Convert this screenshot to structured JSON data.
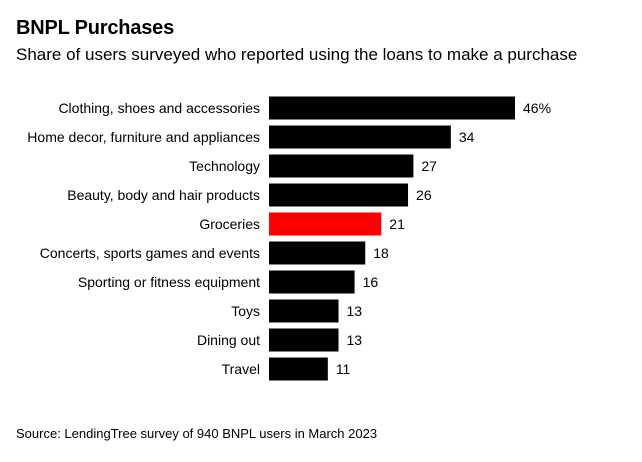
{
  "chart_data": {
    "type": "bar",
    "orientation": "horizontal",
    "title": "BNPL Purchases",
    "subtitle": "Share of users surveyed who reported using the loans to make a purchase",
    "source": "Source: LendingTree survey of 940 BNPL users in March 2023",
    "categories": [
      "Clothing, shoes and accessories",
      "Home decor, furniture and appliances",
      "Technology",
      "Beauty, body and hair products",
      "Groceries",
      "Concerts, sports games and events",
      "Sporting or fitness equipment",
      "Toys",
      "Dining out",
      "Travel"
    ],
    "values": [
      46,
      34,
      27,
      26,
      21,
      18,
      16,
      13,
      13,
      11
    ],
    "value_labels": [
      "46%",
      "34",
      "27",
      "26",
      "21",
      "18",
      "16",
      "13",
      "13",
      "11"
    ],
    "highlight": "Groceries",
    "bar_color": "#000000",
    "highlight_color": "#ff0000",
    "xlim": [
      0,
      46
    ],
    "grid": false,
    "legend": "none"
  }
}
